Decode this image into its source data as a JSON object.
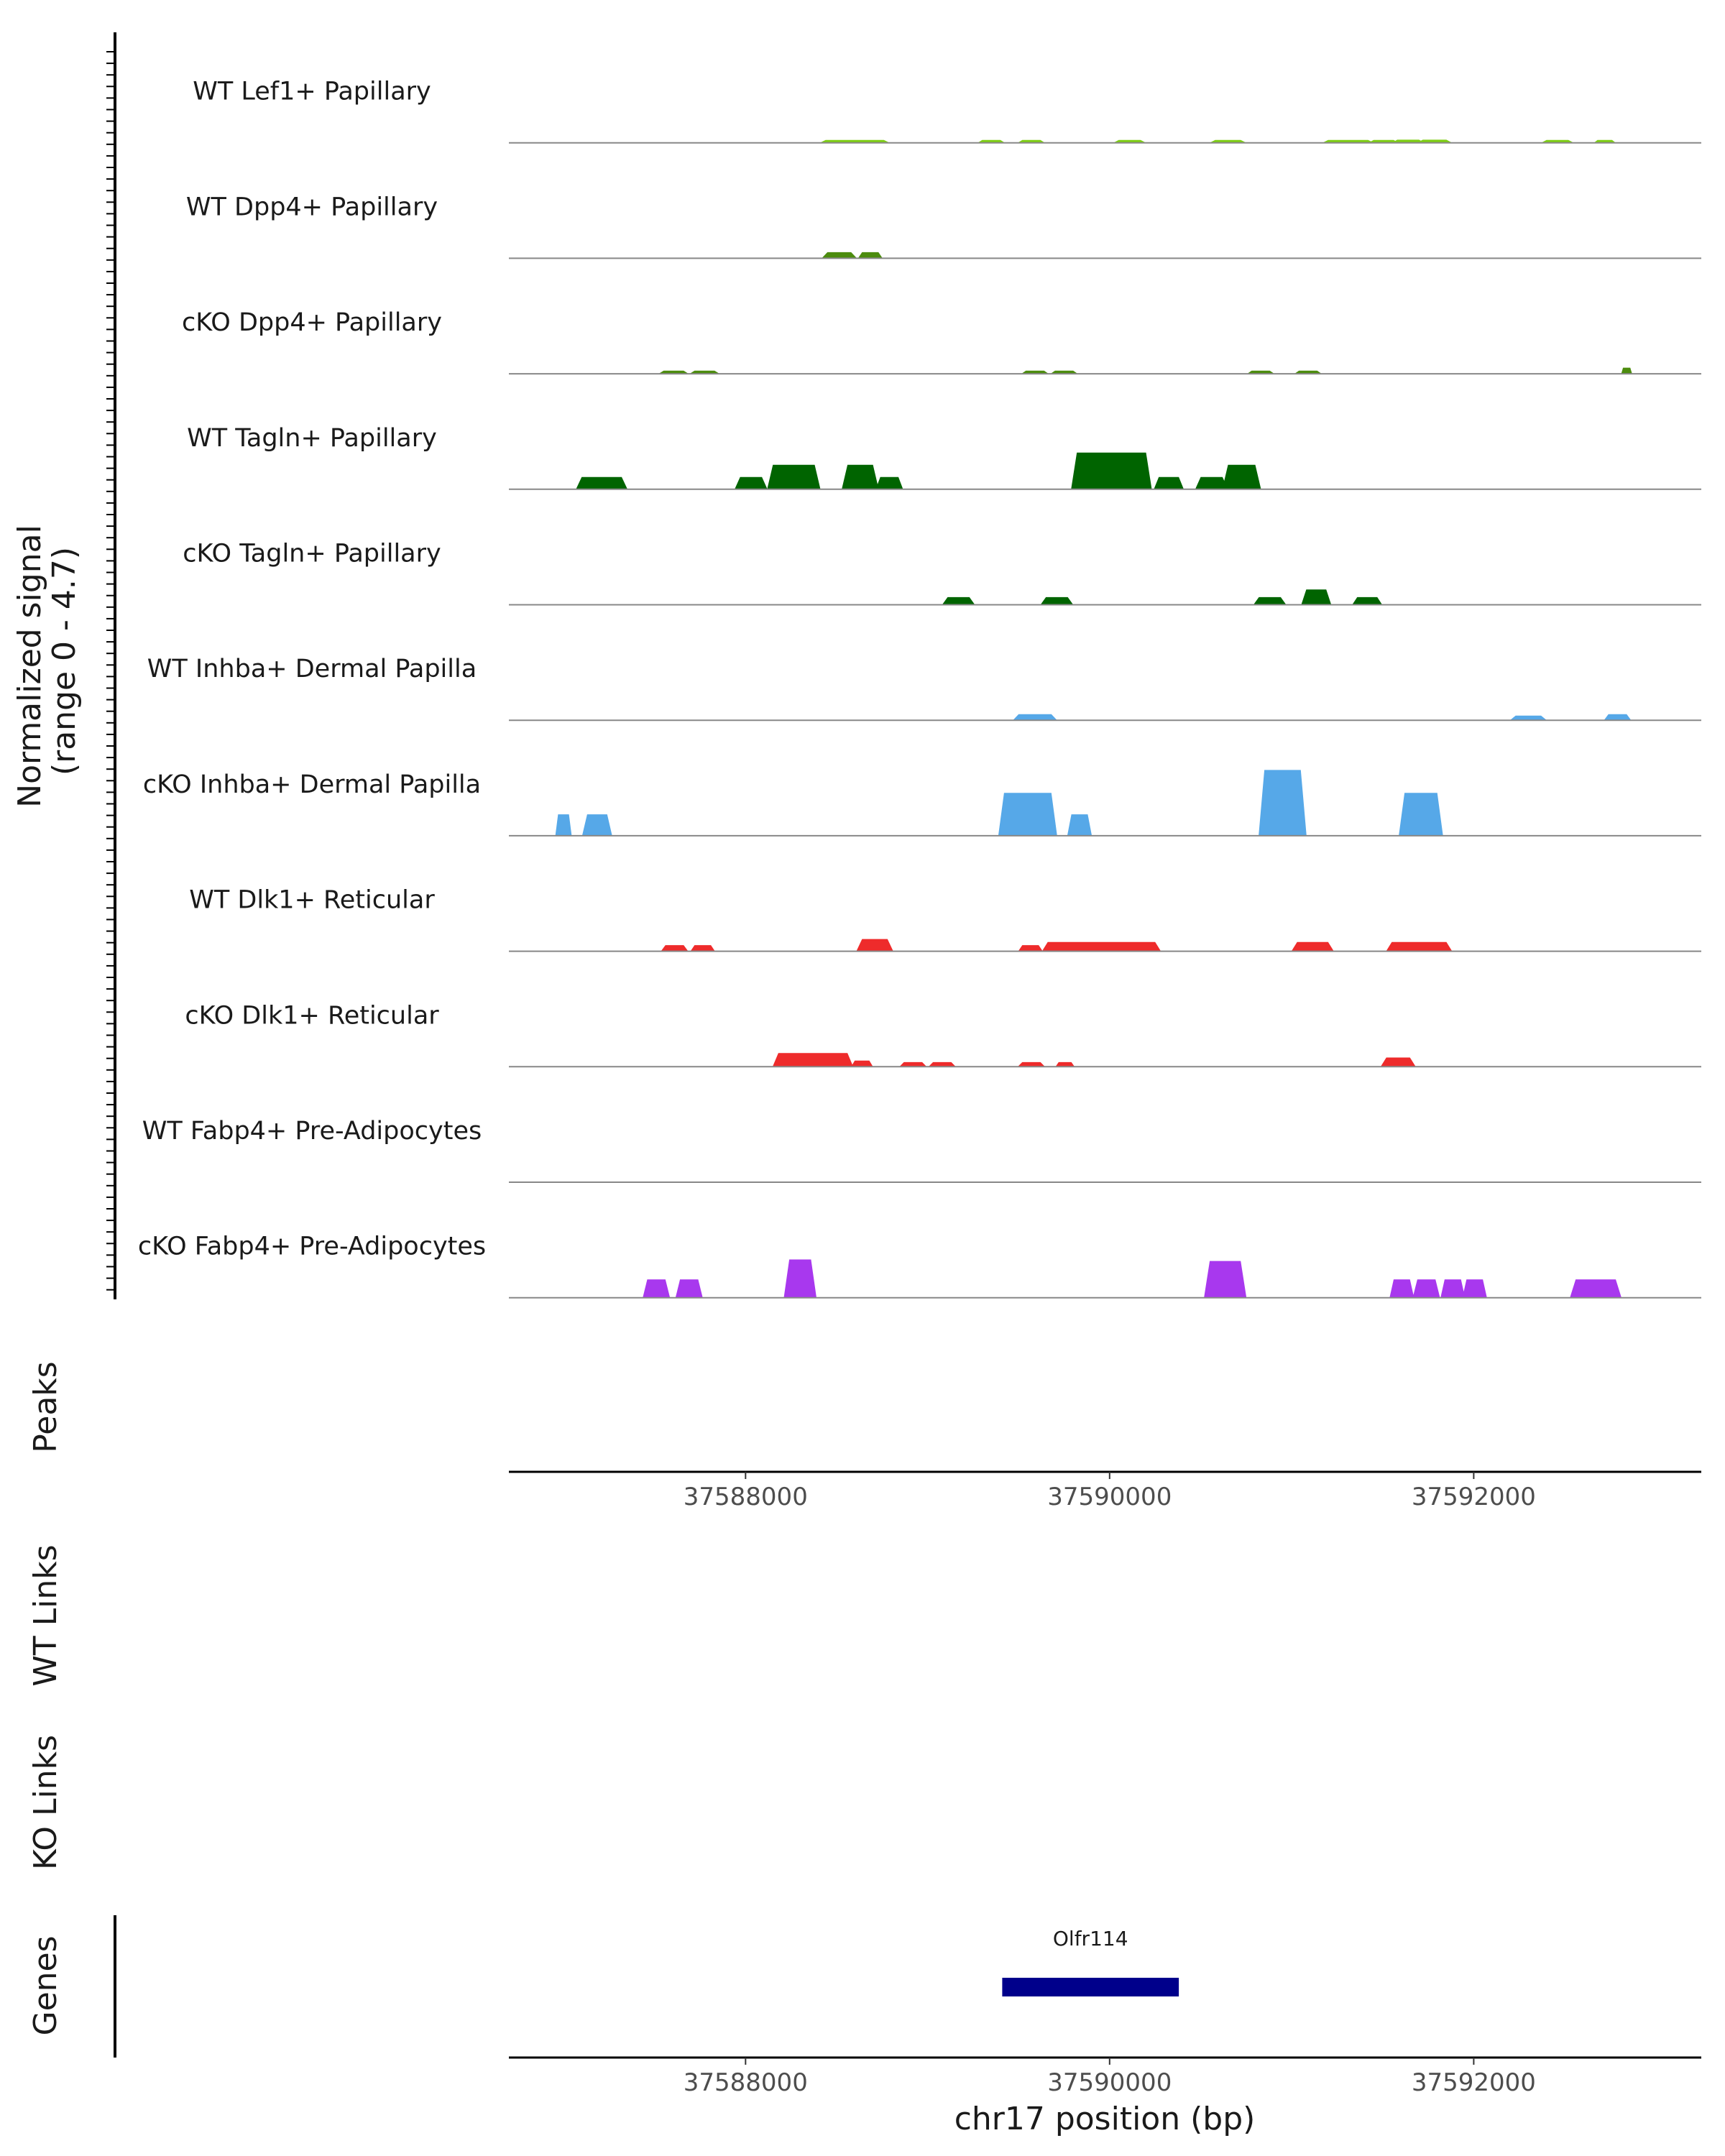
{
  "chart_data": {
    "type": "genome-coverage",
    "region": {
      "chrom": "chr17",
      "start": 37586700,
      "end": 37593250
    },
    "signal_axis": {
      "label_line1": "Normalized signal",
      "label_line2": "(range 0 - 4.7)",
      "range": [
        0,
        4.7
      ]
    },
    "tracks": [
      {
        "name": "WT Lef1+ Papillary",
        "color": "#7dce13",
        "segments": [
          [
            37588440,
            37588760,
            0.15
          ],
          [
            37589300,
            37589400,
            0.1
          ],
          [
            37589520,
            37589620,
            0.1
          ],
          [
            37590050,
            37590170,
            0.15
          ],
          [
            37590580,
            37590720,
            0.15
          ],
          [
            37591200,
            37591420,
            0.1
          ],
          [
            37591450,
            37591560,
            0.1
          ],
          [
            37591580,
            37591700,
            0.2
          ],
          [
            37591720,
            37591850,
            0.2
          ],
          [
            37592400,
            37592520,
            0.1
          ],
          [
            37592680,
            37592760,
            0.1
          ]
        ]
      },
      {
        "name": "WT Dpp4+ Papillary",
        "color": "#4c8c0e",
        "segments": [
          [
            37588450,
            37588580,
            0.4
          ],
          [
            37588640,
            37588730,
            0.4
          ]
        ]
      },
      {
        "name": "cKO Dpp4+ Papillary",
        "color": "#4c8c0e",
        "segments": [
          [
            37587550,
            37587660,
            0.2
          ],
          [
            37587720,
            37587830,
            0.2
          ],
          [
            37589540,
            37589640,
            0.2
          ],
          [
            37589700,
            37589800,
            0.2
          ],
          [
            37590780,
            37590880,
            0.2
          ],
          [
            37591040,
            37591140,
            0.2
          ],
          [
            37592820,
            37592860,
            0.4
          ]
        ]
      },
      {
        "name": "WT Tagln+ Papillary",
        "color": "#006400",
        "segments": [
          [
            37587100,
            37587320,
            0.8
          ],
          [
            37587970,
            37588090,
            0.8
          ],
          [
            37588150,
            37588380,
            1.6
          ],
          [
            37588560,
            37588700,
            1.6
          ],
          [
            37588740,
            37588840,
            0.8
          ],
          [
            37589820,
            37590200,
            2.4
          ],
          [
            37590270,
            37590380,
            0.8
          ],
          [
            37590500,
            37590620,
            0.8
          ],
          [
            37590650,
            37590800,
            1.6
          ]
        ]
      },
      {
        "name": "cKO Tagln+ Papillary",
        "color": "#006400",
        "segments": [
          [
            37589110,
            37589230,
            0.5
          ],
          [
            37589650,
            37589770,
            0.5
          ],
          [
            37590820,
            37590940,
            0.5
          ],
          [
            37591080,
            37591190,
            1.0
          ],
          [
            37591360,
            37591470,
            0.5
          ]
        ]
      },
      {
        "name": "WT Inhba+ Dermal Papilla",
        "color": "#56a8e8",
        "segments": [
          [
            37589500,
            37589680,
            0.4
          ],
          [
            37592230,
            37592370,
            0.3
          ],
          [
            37592740,
            37592840,
            0.4
          ]
        ]
      },
      {
        "name": "cKO Inhba+ Dermal Papilla",
        "color": "#56a8e8",
        "segments": [
          [
            37586970,
            37587030,
            1.4
          ],
          [
            37587130,
            37587240,
            1.4
          ],
          [
            37589420,
            37589680,
            2.8
          ],
          [
            37589790,
            37589880,
            1.4
          ],
          [
            37590850,
            37591050,
            4.3
          ],
          [
            37591620,
            37591800,
            2.8
          ]
        ]
      },
      {
        "name": "WT Dlk1+ Reticular",
        "color": "#ee2b2b",
        "segments": [
          [
            37587560,
            37587660,
            0.4
          ],
          [
            37587720,
            37587810,
            0.4
          ],
          [
            37588640,
            37588780,
            0.8
          ],
          [
            37589520,
            37589610,
            0.4
          ],
          [
            37589660,
            37590250,
            0.6
          ],
          [
            37591030,
            37591200,
            0.6
          ],
          [
            37591550,
            37591850,
            0.6
          ]
        ]
      },
      {
        "name": "cKO Dlk1+ Reticular",
        "color": "#ee2b2b",
        "segments": [
          [
            37588180,
            37588560,
            0.9
          ],
          [
            37588600,
            37588680,
            0.4
          ],
          [
            37588870,
            37588970,
            0.3
          ],
          [
            37589030,
            37589130,
            0.3
          ],
          [
            37589520,
            37589620,
            0.3
          ],
          [
            37589720,
            37589790,
            0.3
          ],
          [
            37591520,
            37591650,
            0.6
          ]
        ]
      },
      {
        "name": "WT Fabp4+ Pre-Adipocytes",
        "color": "#a838ee",
        "segments": []
      },
      {
        "name": "cKO Fabp4+ Pre-Adipocytes",
        "color": "#a838ee",
        "segments": [
          [
            37587460,
            37587560,
            1.2
          ],
          [
            37587640,
            37587740,
            1.2
          ],
          [
            37588240,
            37588360,
            2.5
          ],
          [
            37590550,
            37590720,
            2.4
          ],
          [
            37591560,
            37591650,
            1.2
          ],
          [
            37591690,
            37591790,
            1.2
          ],
          [
            37591840,
            37591930,
            1.2
          ],
          [
            37591960,
            37592050,
            1.2
          ],
          [
            37592560,
            37592780,
            1.2
          ]
        ]
      }
    ],
    "peaks_label": "Peaks",
    "wt_links_label": "WT Links",
    "ko_links_label": "KO Links",
    "genes_label": "Genes",
    "genes": [
      {
        "name": "Olfr114",
        "start": 37589410,
        "end": 37590380,
        "color": "#00008b"
      }
    ],
    "x_ticks": [
      37588000,
      37590000,
      37592000
    ],
    "x_tick_labels": [
      "37588000",
      "37590000",
      "37592000"
    ],
    "xlabel": "chr17 position (bp)"
  }
}
